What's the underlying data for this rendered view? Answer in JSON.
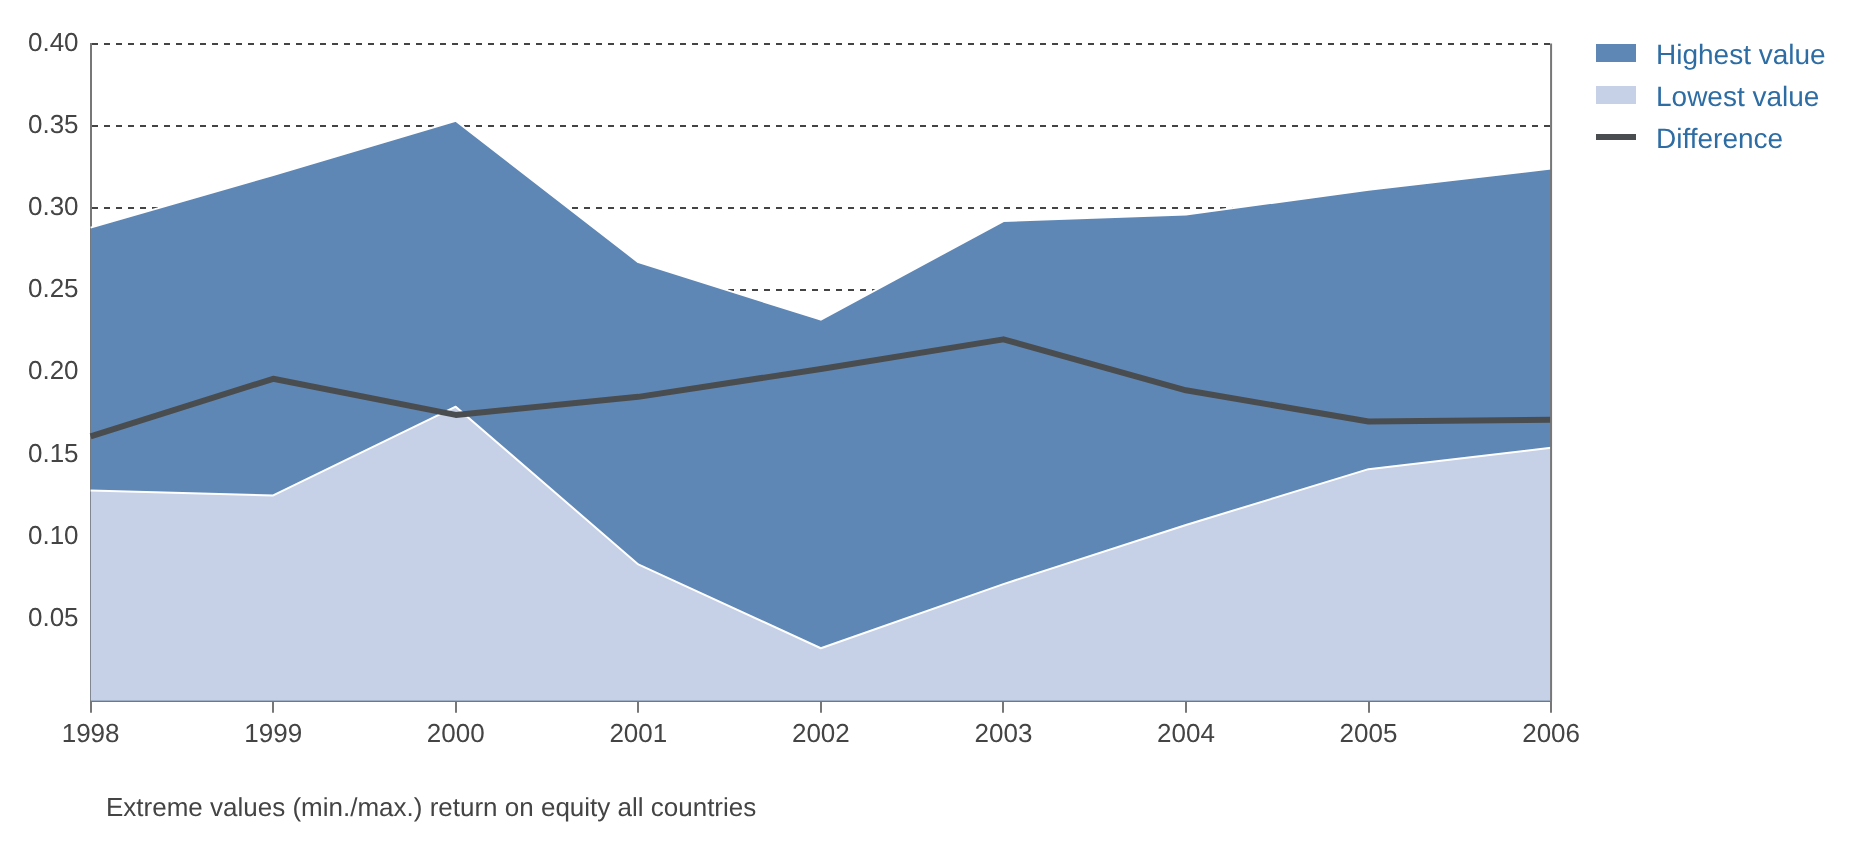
{
  "chart_data": {
    "type": "area",
    "categories": [
      "1998",
      "1999",
      "2000",
      "2001",
      "2002",
      "2003",
      "2004",
      "2005",
      "2006"
    ],
    "series": [
      {
        "name": "Highest value",
        "type": "area",
        "color": "#5f87b5",
        "values": [
          0.288,
          0.32,
          0.353,
          0.267,
          0.232,
          0.292,
          0.296,
          0.311,
          0.324
        ]
      },
      {
        "name": "Lowest value",
        "type": "area",
        "color": "#c6d1e7",
        "values": [
          0.128,
          0.125,
          0.179,
          0.083,
          0.032,
          0.071,
          0.107,
          0.141,
          0.154
        ]
      },
      {
        "name": "Difference",
        "type": "line",
        "color": "#4a4d4f",
        "values": [
          0.161,
          0.196,
          0.174,
          0.185,
          0.202,
          0.22,
          0.189,
          0.17,
          0.171
        ]
      }
    ],
    "ylim": [
      0,
      0.4
    ],
    "yticks": [
      0.05,
      {
        "value": 0.1,
        "label": "0.10"
      },
      0.15,
      {
        "value": 0.2,
        "label": "0.20"
      },
      0.25,
      {
        "value": 0.3,
        "label": "0.30"
      },
      0.35,
      {
        "value": 0.4,
        "label": "0.40"
      }
    ],
    "grid": "y",
    "legend": "top right",
    "marker": "none",
    "annotations": [
      "Extreme values (min./max.) return on equity all countries"
    ]
  }
}
